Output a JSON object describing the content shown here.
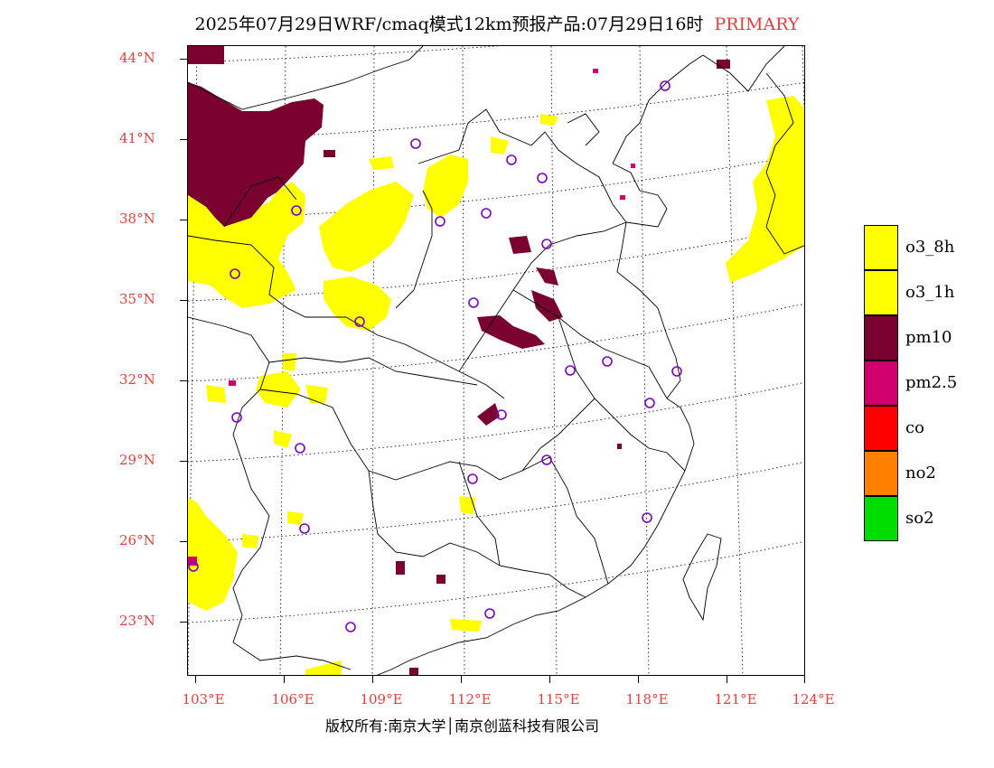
{
  "header": {
    "title": "2025年07月29日WRF/cmaq模式12km预报产品:07月29日16时",
    "tag": "PRIMARY"
  },
  "axes": {
    "lat_labels": [
      "44°N",
      "41°N",
      "38°N",
      "35°N",
      "32°N",
      "29°N",
      "26°N",
      "23°N"
    ],
    "lon_labels": [
      "103°E",
      "106°E",
      "109°E",
      "112°E",
      "115°E",
      "118°E",
      "121°E",
      "124°E"
    ]
  },
  "legend": {
    "items": [
      {
        "label": "o3_8h",
        "color": "#ffff00"
      },
      {
        "label": "o3_1h",
        "color": "#ffff00"
      },
      {
        "label": "pm10",
        "color": "#7a0030"
      },
      {
        "label": "pm2.5",
        "color": "#d0006f"
      },
      {
        "label": "co",
        "color": "#ff0000"
      },
      {
        "label": "no2",
        "color": "#ff8000"
      },
      {
        "label": "so2",
        "color": "#00dd00"
      }
    ]
  },
  "colors": {
    "o3": "#ffff00",
    "pm10": "#7a0030",
    "pm25": "#d0006f",
    "station": "#8000c0",
    "axis_label": "#e04040"
  },
  "footer": {
    "copyright": "版权所有:南京大学│南京创蓝科技有限公司"
  }
}
